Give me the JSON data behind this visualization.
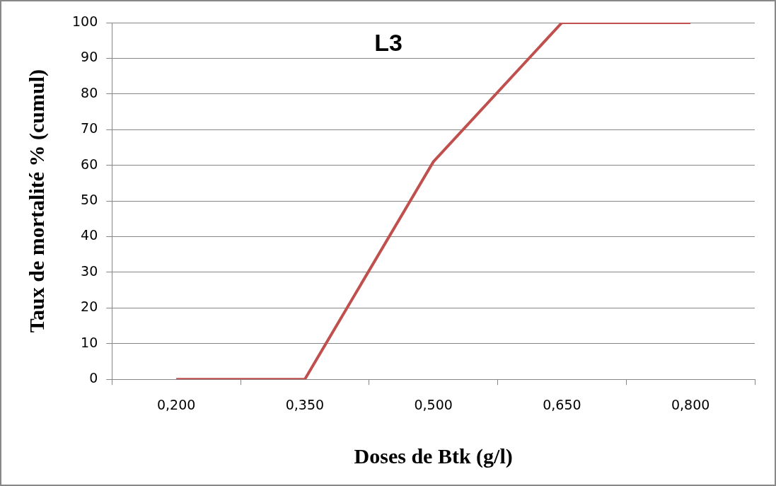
{
  "chart_data": {
    "type": "line",
    "title": "L3",
    "xlabel": "Doses de Btk (g/l)",
    "ylabel": "Taux de mortalité % (cumul)",
    "categories": [
      "0,200",
      "0,350",
      "0,500",
      "0,650",
      "0,800"
    ],
    "series": [
      {
        "color": "#c0504d",
        "values": [
          0,
          0,
          61,
          100,
          100
        ]
      }
    ],
    "ylim": [
      0,
      100
    ],
    "yticks": [
      0,
      10,
      20,
      30,
      40,
      50,
      60,
      70,
      80,
      90,
      100
    ],
    "grid": "y",
    "legend": false,
    "marker": "none",
    "line_style": "solid"
  }
}
